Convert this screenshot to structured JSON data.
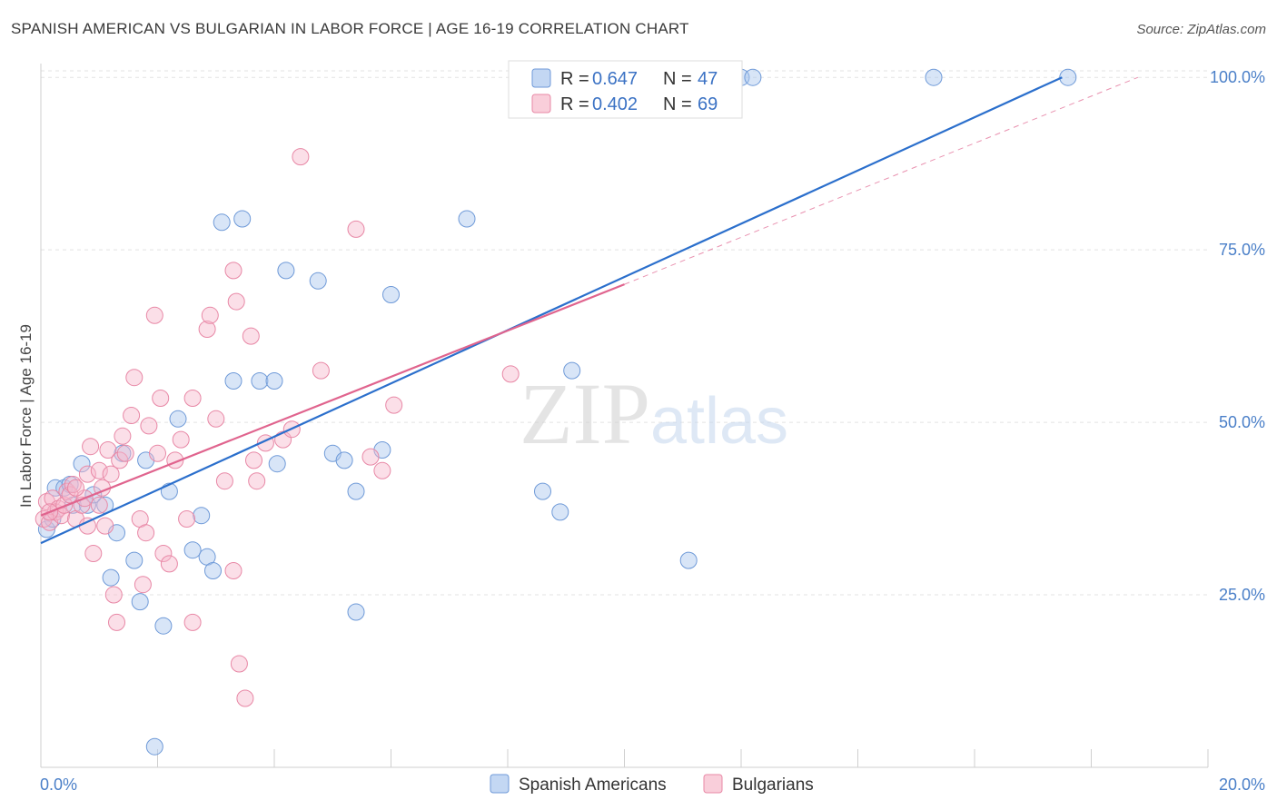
{
  "chart_data": {
    "type": "scatter",
    "title": "SPANISH AMERICAN VS BULGARIAN IN LABOR FORCE | AGE 16-19 CORRELATION CHART",
    "source": "Source: ZipAtlas.com",
    "ylabel": "In Labor Force | Age 16-19",
    "xlabel": "",
    "xlim": [
      0,
      20
    ],
    "ylim": [
      0,
      102
    ],
    "x_tick_labels": [
      "0.0%",
      "20.0%"
    ],
    "y_ticks": [
      25,
      50,
      75,
      100
    ],
    "y_tick_labels": [
      "25.0%",
      "50.0%",
      "75.0%",
      "100.0%"
    ],
    "grid": true,
    "watermark": "ZIPatlas",
    "legend_stats": [
      {
        "r_label": "R = ",
        "r_value": "0.647",
        "n_label": "N = ",
        "n_value": "47"
      },
      {
        "r_label": "R = ",
        "r_value": "0.402",
        "n_label": "N = ",
        "n_value": "69"
      }
    ],
    "series": [
      {
        "name": "Spanish Americans",
        "color": "#a9c6ee",
        "stroke": "#6f9ad8",
        "line_color": "#2b6fcc",
        "trend": {
          "x0": 0.0,
          "y0": 32.5,
          "x1": 17.5,
          "y1": 100.0
        },
        "points": [
          [
            0.1,
            34.5
          ],
          [
            0.2,
            36.0
          ],
          [
            0.25,
            40.5
          ],
          [
            0.4,
            40.5
          ],
          [
            0.5,
            41.0
          ],
          [
            0.55,
            38.0
          ],
          [
            0.7,
            44.0
          ],
          [
            0.8,
            38.0
          ],
          [
            0.9,
            39.5
          ],
          [
            1.1,
            38.0
          ],
          [
            1.2,
            27.5
          ],
          [
            1.3,
            34.0
          ],
          [
            1.4,
            45.5
          ],
          [
            1.6,
            30.0
          ],
          [
            1.7,
            24.0
          ],
          [
            1.8,
            44.5
          ],
          [
            2.1,
            20.5
          ],
          [
            2.2,
            40.0
          ],
          [
            2.35,
            50.5
          ],
          [
            2.6,
            31.5
          ],
          [
            2.75,
            36.5
          ],
          [
            2.85,
            30.5
          ],
          [
            2.95,
            28.5
          ],
          [
            3.1,
            79.0
          ],
          [
            3.3,
            56.0
          ],
          [
            3.45,
            79.5
          ],
          [
            3.75,
            56.0
          ],
          [
            4.0,
            56.0
          ],
          [
            4.05,
            44.0
          ],
          [
            4.2,
            72.0
          ],
          [
            4.75,
            70.5
          ],
          [
            5.0,
            45.5
          ],
          [
            5.2,
            44.5
          ],
          [
            5.4,
            40.0
          ],
          [
            5.4,
            22.5
          ],
          [
            5.85,
            46.0
          ],
          [
            6.0,
            68.5
          ],
          [
            7.3,
            79.5
          ],
          [
            8.6,
            40.0
          ],
          [
            8.9,
            37.0
          ],
          [
            9.1,
            57.5
          ],
          [
            11.1,
            30.0
          ],
          [
            12.0,
            100.0
          ],
          [
            12.2,
            100.0
          ],
          [
            15.3,
            100.0
          ],
          [
            17.6,
            100.0
          ],
          [
            1.95,
            3.0
          ]
        ]
      },
      {
        "name": "Bulgarians",
        "color": "#f6b9cb",
        "stroke": "#e888a6",
        "line_color": "#e0648e",
        "trend": {
          "x0": 0.0,
          "y0": 36.5,
          "x1": 10.0,
          "y1": 70.0
        },
        "trend_ext": {
          "x0": 10.0,
          "y0": 70.0,
          "x1": 18.8,
          "y1": 100.0
        },
        "points": [
          [
            0.05,
            36.0
          ],
          [
            0.1,
            38.5
          ],
          [
            0.15,
            35.5
          ],
          [
            0.2,
            39.0
          ],
          [
            0.25,
            37.0
          ],
          [
            0.3,
            37.5
          ],
          [
            0.35,
            36.5
          ],
          [
            0.4,
            38.0
          ],
          [
            0.45,
            40.0
          ],
          [
            0.5,
            39.5
          ],
          [
            0.55,
            41.0
          ],
          [
            0.6,
            36.0
          ],
          [
            0.7,
            38.0
          ],
          [
            0.75,
            39.0
          ],
          [
            0.8,
            35.0
          ],
          [
            0.8,
            42.5
          ],
          [
            0.85,
            46.5
          ],
          [
            0.9,
            31.0
          ],
          [
            1.0,
            43.0
          ],
          [
            1.05,
            40.5
          ],
          [
            1.1,
            35.0
          ],
          [
            1.15,
            46.0
          ],
          [
            1.2,
            42.5
          ],
          [
            1.25,
            25.0
          ],
          [
            1.3,
            21.0
          ],
          [
            1.35,
            44.5
          ],
          [
            1.4,
            48.0
          ],
          [
            1.45,
            45.5
          ],
          [
            1.55,
            51.0
          ],
          [
            1.6,
            56.5
          ],
          [
            1.7,
            36.0
          ],
          [
            1.75,
            26.5
          ],
          [
            1.8,
            34.0
          ],
          [
            1.85,
            49.5
          ],
          [
            1.95,
            65.5
          ],
          [
            2.0,
            45.5
          ],
          [
            2.05,
            53.5
          ],
          [
            2.1,
            31.0
          ],
          [
            2.2,
            29.5
          ],
          [
            2.3,
            44.5
          ],
          [
            2.4,
            47.5
          ],
          [
            2.5,
            36.0
          ],
          [
            2.6,
            21.0
          ],
          [
            2.6,
            53.5
          ],
          [
            2.85,
            63.5
          ],
          [
            2.9,
            65.5
          ],
          [
            3.0,
            50.5
          ],
          [
            3.15,
            41.5
          ],
          [
            3.3,
            28.5
          ],
          [
            3.3,
            72.0
          ],
          [
            3.35,
            67.5
          ],
          [
            3.4,
            15.0
          ],
          [
            3.5,
            10.0
          ],
          [
            3.6,
            62.5
          ],
          [
            3.65,
            44.5
          ],
          [
            3.7,
            41.5
          ],
          [
            3.85,
            47.0
          ],
          [
            4.15,
            47.5
          ],
          [
            4.3,
            49.0
          ],
          [
            4.45,
            88.5
          ],
          [
            4.8,
            57.5
          ],
          [
            5.4,
            78.0
          ],
          [
            5.65,
            45.0
          ],
          [
            5.85,
            43.0
          ],
          [
            6.05,
            52.5
          ],
          [
            8.05,
            57.0
          ],
          [
            0.15,
            37.0
          ],
          [
            0.6,
            40.5
          ],
          [
            1.0,
            38.0
          ]
        ]
      }
    ]
  }
}
